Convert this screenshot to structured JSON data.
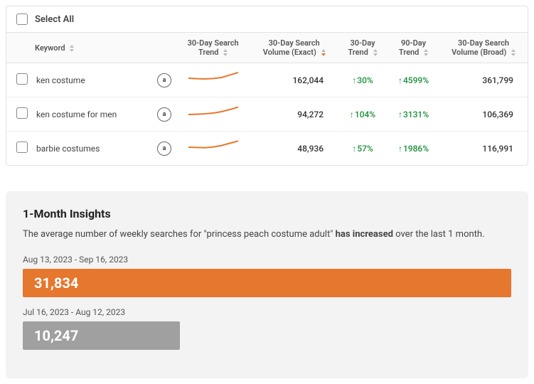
{
  "table": {
    "select_all_label": "Select All",
    "columns": {
      "keyword": "Keyword",
      "trend30": "30-Day Search\nTrend",
      "volExact": "30-Day Search\nVolume (Exact)",
      "trend30d": "30-Day\nTrend",
      "trend90d": "90-Day\nTrend",
      "volBroad": "30-Day Search\nVolume (Broad)"
    },
    "sorted_col": "volExact",
    "rows": [
      {
        "keyword": "ken costume",
        "badge": "a",
        "spark_values": [
          0.55,
          0.52,
          0.5,
          0.53,
          0.6,
          0.78,
          0.95
        ],
        "vol_exact": "162,044",
        "trend_30": "30%",
        "trend_90": "4599%",
        "vol_broad": "361,799"
      },
      {
        "keyword": "ken costume for men",
        "badge": "a",
        "spark_values": [
          0.4,
          0.42,
          0.45,
          0.5,
          0.6,
          0.75,
          0.92
        ],
        "vol_exact": "94,272",
        "trend_30": "104%",
        "trend_90": "3131%",
        "vol_broad": "106,369"
      },
      {
        "keyword": "barbie costumes",
        "badge": "a",
        "spark_values": [
          0.5,
          0.48,
          0.46,
          0.52,
          0.62,
          0.78,
          0.93
        ],
        "vol_exact": "48,936",
        "trend_30": "57%",
        "trend_90": "1986%",
        "vol_broad": "116,991"
      }
    ],
    "spark_color": "#e6772e"
  },
  "insights": {
    "title": "1-Month Insights",
    "intro_pre": "The average number of weekly searches for \"",
    "intro_keyword": "princess peach costume adult",
    "intro_mid": "\" ",
    "intro_emph": "has increased",
    "intro_post": " over the last 1 month.",
    "bars": [
      {
        "date_range": "Aug 13, 2023 - Sep 16, 2023",
        "value": "31,834",
        "width_pct": 100,
        "bg": "#e6772e"
      },
      {
        "date_range": "Jul 16, 2023 - Aug 12, 2023",
        "value": "10,247",
        "width_pct": 32.2,
        "bg": "#a0a0a0"
      }
    ]
  }
}
